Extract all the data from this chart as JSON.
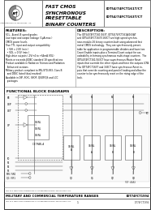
{
  "bg_color": "#e8e4df",
  "page_bg": "#f5f3f0",
  "border_color": "#444444",
  "line_color": "#555555",
  "features_title": "FEATURES:",
  "description_title": "DESCRIPTION:",
  "functional_title": "FUNCTIONAL BLOCK DIAGRAMS",
  "company_text": "Integrated Device Technology, Inc.",
  "bottom_military": "MILITARY AND COMMERCIAL TEMPERATURE RANGES",
  "bottom_part": "IDT74FCT1994",
  "footer_trademark": "IDT is a registered trademark of Integrated Device Technology, Inc.",
  "footer_page": "1",
  "footer_doc": "IDT74FCT1994",
  "features_lines": [
    "SCL, -A and -B speed grades",
    "Low input and output leakage (1μA max.)",
    "CMOS power levels",
    "True TTL input and output compatibility",
    "  • VIH = 2.0V (min.)",
    "  • VOL = 0.5V (min.)",
    "High-drive outputs (-1V/+4 to +64mA VOL)",
    "Meets or exceeds JEDEC standard 18 specifications",
    "Product available in Radiation Tolerant and Radiation",
    "  Enhanced versions",
    "Military product compliant to MIL-STD-883, Class B",
    "  and DESC listed (dual marked)",
    "Available in DIP, SOIC, SSOP, QSOP/QS and LCC",
    "  packages"
  ],
  "description_lines": [
    "The IDT54/74FCT161/163T, IDT54/74FCT161A/163AT",
    "and IDT54/74FCT163T/163CT are high-speed synchro-",
    "nous modulo-16 binary counters built using advanced fast",
    "metal CMOS technology.  They are synchronously preset-",
    "table for application in programmable dividers and have two",
    "Count Enable inputs plus a Terminal Count output for cas-",
    "cadeability in forming synchronous multi-stage counters.  The",
    "IDT54/74FCT161/163CT have asynchronous Master Reset",
    "inputs that override the other inputs and force the outputs LOW.",
    "The IDT74FCT163T and 163CT have synchronous Reset in-",
    "puts that override counting and parallel loading and allow the",
    "counter to be synchronously reset on the rising edge of the",
    "clock."
  ],
  "header_title_lines": [
    "FAST CMOS",
    "SYNCHRONOUS",
    "PRESETTABLE",
    "BINARY COUNTERS"
  ],
  "part_num_lines": [
    "IDT54/74FCT161T/CT",
    "IDT54/74FCT163T/CT"
  ],
  "ff_labels": [
    "CE/INL\nA",
    "CE/INL\nA",
    "CE/INL\nB"
  ],
  "input_labels": [
    "PE",
    "CEP",
    "CET",
    "CP"
  ],
  "p_labels": [
    "P0",
    "P1",
    "P2",
    "P3"
  ]
}
